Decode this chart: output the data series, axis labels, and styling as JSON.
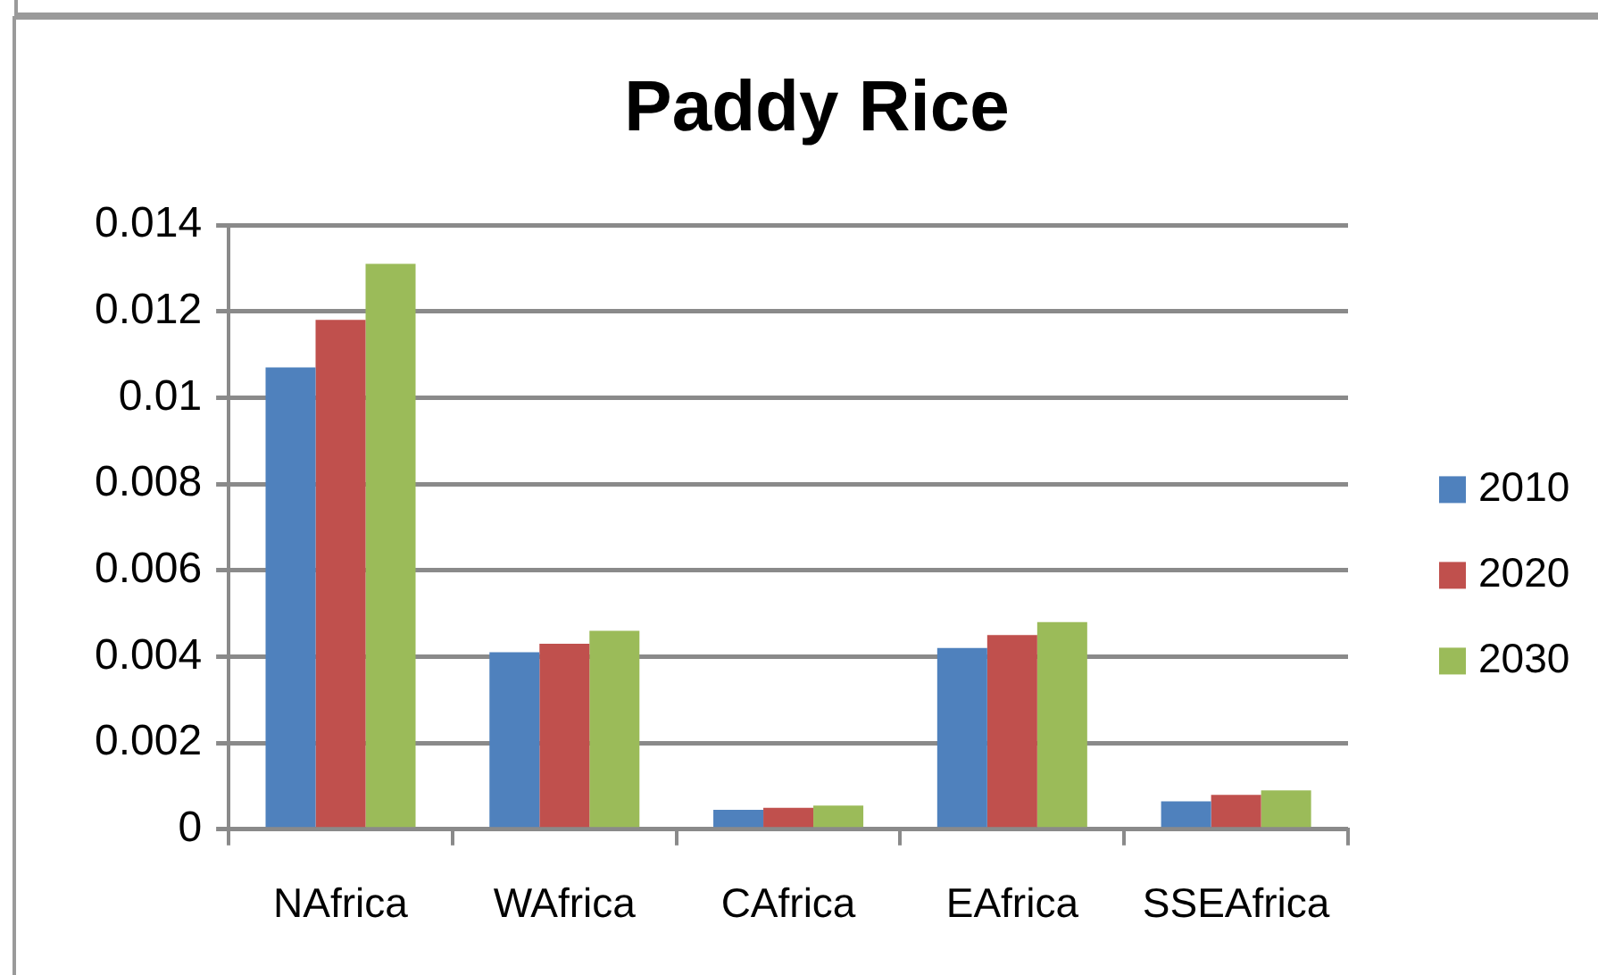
{
  "chart_data": {
    "type": "bar",
    "title": "Paddy Rice",
    "categories": [
      "NAfrica",
      "WAfrica",
      "CAfrica",
      "EAfrica",
      "SSEAfrica"
    ],
    "series": [
      {
        "name": "2010",
        "color": "#4f81bd",
        "values": [
          0.0107,
          0.0041,
          0.00045,
          0.0042,
          0.00065
        ]
      },
      {
        "name": "2020",
        "color": "#c0504d",
        "values": [
          0.0118,
          0.0043,
          0.0005,
          0.0045,
          0.0008
        ]
      },
      {
        "name": "2030",
        "color": "#9bbb59",
        "values": [
          0.0131,
          0.0046,
          0.00055,
          0.0048,
          0.0009
        ]
      }
    ],
    "ylim": [
      0,
      0.014
    ],
    "yticks": [
      0,
      0.002,
      0.004,
      0.006,
      0.008,
      0.01,
      0.012,
      0.014
    ],
    "grid": "y",
    "legend": "right"
  }
}
